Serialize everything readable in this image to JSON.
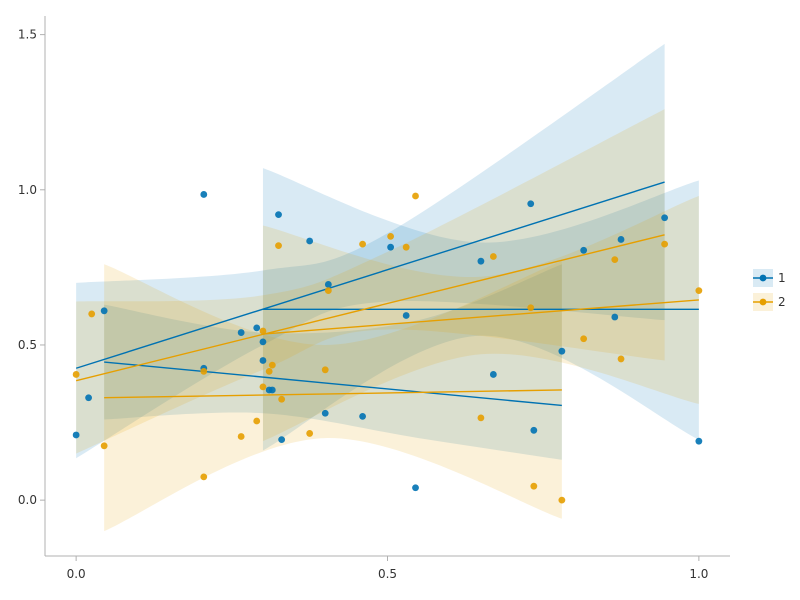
{
  "chart_data": {
    "type": "scatter",
    "title": "",
    "xlabel": "",
    "ylabel": "",
    "xlim": [
      -0.05,
      1.05
    ],
    "ylim": [
      -0.18,
      1.56
    ],
    "x_ticks": [
      0.0,
      0.5,
      1.0
    ],
    "y_ticks": [
      0.0,
      0.5,
      1.0,
      1.5
    ],
    "x_tick_labels": [
      "0.0",
      "0.5",
      "1.0"
    ],
    "y_tick_labels": [
      "0.0",
      "0.5",
      "1.0",
      "1.5"
    ],
    "grid": false,
    "legend_position": "right",
    "series": [
      {
        "name": "1",
        "color": "#0072B2",
        "points": [
          {
            "x": 0.0,
            "y": 0.21
          },
          {
            "x": 0.02,
            "y": 0.33
          },
          {
            "x": 0.045,
            "y": 0.61
          },
          {
            "x": 0.205,
            "y": 0.985
          },
          {
            "x": 0.205,
            "y": 0.425
          },
          {
            "x": 0.265,
            "y": 0.54
          },
          {
            "x": 0.29,
            "y": 0.555
          },
          {
            "x": 0.3,
            "y": 0.51
          },
          {
            "x": 0.3,
            "y": 0.45
          },
          {
            "x": 0.31,
            "y": 0.355
          },
          {
            "x": 0.315,
            "y": 0.355
          },
          {
            "x": 0.325,
            "y": 0.92
          },
          {
            "x": 0.33,
            "y": 0.195
          },
          {
            "x": 0.375,
            "y": 0.835
          },
          {
            "x": 0.4,
            "y": 0.28
          },
          {
            "x": 0.405,
            "y": 0.695
          },
          {
            "x": 0.46,
            "y": 0.27
          },
          {
            "x": 0.505,
            "y": 0.815
          },
          {
            "x": 0.53,
            "y": 0.595
          },
          {
            "x": 0.545,
            "y": 0.04
          },
          {
            "x": 0.65,
            "y": 0.77
          },
          {
            "x": 0.67,
            "y": 0.405
          },
          {
            "x": 0.73,
            "y": 0.955
          },
          {
            "x": 0.735,
            "y": 0.225
          },
          {
            "x": 0.78,
            "y": 0.48
          },
          {
            "x": 0.815,
            "y": 0.805
          },
          {
            "x": 0.865,
            "y": 0.59
          },
          {
            "x": 0.875,
            "y": 0.84
          },
          {
            "x": 0.945,
            "y": 0.91
          },
          {
            "x": 1.0,
            "y": 0.19
          }
        ],
        "fits": [
          {
            "x": [
              0.0,
              0.945
            ],
            "y": [
              0.425,
              1.025
            ],
            "band": [
              {
                "x": 0.0,
                "lo": 0.135,
                "hi": 0.7
              },
              {
                "x": 0.3,
                "lo": 0.5,
                "hi": 0.74
              },
              {
                "x": 0.5,
                "lo": 0.64,
                "hi": 0.86
              },
              {
                "x": 0.945,
                "lo": 0.58,
                "hi": 1.47
              }
            ]
          },
          {
            "x": [
              0.045,
              0.78
            ],
            "y": [
              0.445,
              0.305
            ],
            "band": [
              {
                "x": 0.045,
                "lo": 0.26,
                "hi": 0.63
              },
              {
                "x": 0.3,
                "lo": 0.28,
                "hi": 0.54
              },
              {
                "x": 0.55,
                "lo": 0.2,
                "hi": 0.58
              },
              {
                "x": 0.78,
                "lo": 0.13,
                "hi": 0.76
              }
            ]
          },
          {
            "x": [
              0.3,
              1.0
            ],
            "y": [
              0.615,
              0.615
            ],
            "band": [
              {
                "x": 0.3,
                "lo": 0.16,
                "hi": 1.07
              },
              {
                "x": 0.65,
                "lo": 0.53,
                "hi": 0.83
              },
              {
                "x": 1.0,
                "lo": 0.195,
                "hi": 1.03
              }
            ]
          }
        ]
      },
      {
        "name": "2",
        "color": "#E69F00",
        "points": [
          {
            "x": 0.0,
            "y": 0.405
          },
          {
            "x": 0.025,
            "y": 0.6
          },
          {
            "x": 0.045,
            "y": 0.175
          },
          {
            "x": 0.205,
            "y": 0.415
          },
          {
            "x": 0.205,
            "y": 0.075
          },
          {
            "x": 0.265,
            "y": 0.205
          },
          {
            "x": 0.29,
            "y": 0.255
          },
          {
            "x": 0.3,
            "y": 0.545
          },
          {
            "x": 0.3,
            "y": 0.365
          },
          {
            "x": 0.31,
            "y": 0.415
          },
          {
            "x": 0.315,
            "y": 0.435
          },
          {
            "x": 0.325,
            "y": 0.82
          },
          {
            "x": 0.33,
            "y": 0.325
          },
          {
            "x": 0.375,
            "y": 0.215
          },
          {
            "x": 0.4,
            "y": 0.42
          },
          {
            "x": 0.405,
            "y": 0.675
          },
          {
            "x": 0.46,
            "y": 0.825
          },
          {
            "x": 0.505,
            "y": 0.85
          },
          {
            "x": 0.53,
            "y": 0.815
          },
          {
            "x": 0.545,
            "y": 0.98
          },
          {
            "x": 0.65,
            "y": 0.265
          },
          {
            "x": 0.67,
            "y": 0.785
          },
          {
            "x": 0.73,
            "y": 0.62
          },
          {
            "x": 0.735,
            "y": 0.045
          },
          {
            "x": 0.78,
            "y": 0.0
          },
          {
            "x": 0.815,
            "y": 0.52
          },
          {
            "x": 0.865,
            "y": 0.775
          },
          {
            "x": 0.875,
            "y": 0.455
          },
          {
            "x": 0.945,
            "y": 0.825
          },
          {
            "x": 1.0,
            "y": 0.675
          }
        ],
        "fits": [
          {
            "x": [
              0.0,
              0.945
            ],
            "y": [
              0.385,
              0.855
            ],
            "band": [
              {
                "x": 0.0,
                "lo": 0.15,
                "hi": 0.64
              },
              {
                "x": 0.3,
                "lo": 0.42,
                "hi": 0.66
              },
              {
                "x": 0.5,
                "lo": 0.55,
                "hi": 0.8
              },
              {
                "x": 0.945,
                "lo": 0.45,
                "hi": 1.26
              }
            ]
          },
          {
            "x": [
              0.045,
              0.78
            ],
            "y": [
              0.33,
              0.355
            ],
            "band": [
              {
                "x": 0.045,
                "lo": -0.1,
                "hi": 0.76
              },
              {
                "x": 0.4,
                "lo": 0.2,
                "hi": 0.5
              },
              {
                "x": 0.78,
                "lo": -0.06,
                "hi": 0.77
              }
            ]
          },
          {
            "x": [
              0.3,
              1.0
            ],
            "y": [
              0.535,
              0.645
            ],
            "band": [
              {
                "x": 0.3,
                "lo": 0.19,
                "hi": 0.885
              },
              {
                "x": 0.65,
                "lo": 0.47,
                "hi": 0.72
              },
              {
                "x": 1.0,
                "lo": 0.31,
                "hi": 0.98
              }
            ]
          }
        ]
      }
    ]
  }
}
